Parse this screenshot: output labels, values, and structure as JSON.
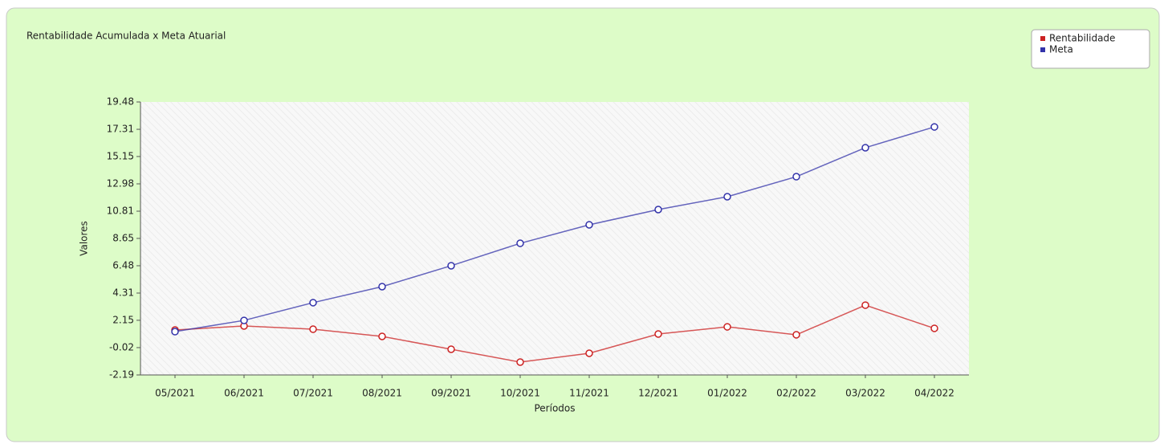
{
  "chart_data": {
    "type": "line",
    "title": "Rentabilidade Acumulada x Meta Atuarial",
    "x_label": "Períodos",
    "y_label": "Valores",
    "categories": [
      "05/2021",
      "06/2021",
      "07/2021",
      "08/2021",
      "09/2021",
      "10/2021",
      "11/2021",
      "12/2021",
      "01/2022",
      "02/2022",
      "03/2022",
      "04/2022"
    ],
    "series": [
      {
        "name": "Rentabilidade",
        "color": "#cc2222",
        "values": [
          1.38,
          1.7,
          1.44,
          0.87,
          -0.15,
          -1.17,
          -0.47,
          1.06,
          1.63,
          1.0,
          3.35,
          1.51
        ]
      },
      {
        "name": "Meta",
        "color": "#3333aa",
        "values": [
          1.25,
          2.14,
          3.55,
          4.82,
          6.48,
          8.26,
          9.73,
          10.94,
          11.96,
          13.55,
          15.85,
          17.5
        ]
      }
    ],
    "ylim": [
      -2.19,
      19.48
    ],
    "yticks": [
      -2.19,
      -0.02,
      2.15,
      4.31,
      6.48,
      8.65,
      10.81,
      12.98,
      15.15,
      17.31,
      19.48
    ]
  }
}
